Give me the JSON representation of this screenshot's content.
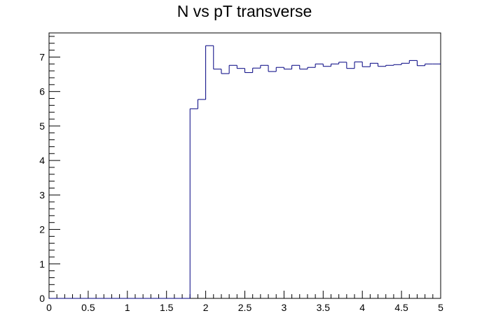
{
  "chart_data": {
    "type": "histogram",
    "title": "N vs pT transverse",
    "xlabel": "",
    "ylabel": "",
    "xlim": [
      0,
      5
    ],
    "ylim": [
      0,
      7.7
    ],
    "grid": false,
    "legend": "none",
    "line_color": "#000080",
    "axis_color": "#000000",
    "x_tick_labels": [
      "0",
      "0.5",
      "1",
      "1.5",
      "2",
      "2.5",
      "3",
      "3.5",
      "4",
      "4.5",
      "5"
    ],
    "y_tick_labels": [
      "0",
      "1",
      "2",
      "3",
      "4",
      "5",
      "6",
      "7"
    ],
    "bin_width": 0.1,
    "bin_start": 0,
    "values": [
      0,
      0,
      0,
      0,
      0,
      0,
      0,
      0,
      0,
      0,
      0,
      0,
      0,
      0,
      0,
      0,
      0,
      0,
      5.5,
      5.77,
      7.33,
      6.65,
      6.52,
      6.76,
      6.67,
      6.55,
      6.68,
      6.76,
      6.58,
      6.7,
      6.65,
      6.76,
      6.65,
      6.7,
      6.8,
      6.73,
      6.8,
      6.85,
      6.67,
      6.86,
      6.72,
      6.82,
      6.73,
      6.76,
      6.78,
      6.82,
      6.9,
      6.75,
      6.8,
      6.8
    ]
  }
}
